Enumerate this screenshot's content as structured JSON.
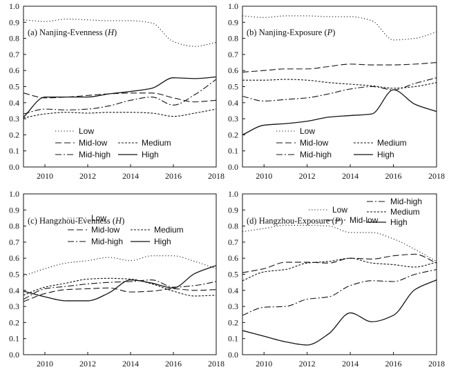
{
  "chart_data": [
    {
      "type": "line",
      "title_prefix": "(a) Nanjing-Evenness (",
      "title_var": "H",
      "title_suffix": ")",
      "xlim": [
        2009,
        2018
      ],
      "ylim": [
        0,
        1
      ],
      "xticks": [
        2010,
        2012,
        2014,
        2016,
        2018
      ],
      "yticks": [
        0.0,
        0.1,
        0.2,
        0.3,
        0.4,
        0.5,
        0.6,
        0.7,
        0.8,
        0.9,
        1.0
      ],
      "x": [
        2009,
        2010,
        2011,
        2012,
        2013,
        2014,
        2015,
        2016,
        2017,
        2018
      ],
      "series": [
        {
          "name": "Low",
          "dash": "1.2,3",
          "values": [
            0.915,
            0.905,
            0.92,
            0.915,
            0.91,
            0.91,
            0.895,
            0.78,
            0.75,
            0.775
          ]
        },
        {
          "name": "Mid-low",
          "dash": "9,4",
          "values": [
            0.46,
            0.43,
            0.435,
            0.445,
            0.455,
            0.46,
            0.46,
            0.43,
            0.405,
            0.415
          ]
        },
        {
          "name": "Medium",
          "dash": "3,2",
          "values": [
            0.305,
            0.33,
            0.34,
            0.335,
            0.34,
            0.34,
            0.335,
            0.315,
            0.335,
            0.36
          ]
        },
        {
          "name": "Mid-high",
          "dash": "9,3,2,3",
          "values": [
            0.33,
            0.36,
            0.355,
            0.36,
            0.38,
            0.415,
            0.435,
            0.385,
            0.45,
            0.545
          ]
        },
        {
          "name": "High",
          "dash": "",
          "values": [
            0.31,
            0.435,
            0.435,
            0.435,
            0.455,
            0.47,
            0.49,
            0.555,
            0.55,
            0.56
          ]
        }
      ],
      "legend_rows": [
        [
          {
            "s": 0
          }
        ],
        [
          {
            "s": 1
          },
          {
            "s": 2
          }
        ],
        [
          {
            "s": 3
          },
          {
            "s": 4
          }
        ]
      ]
    },
    {
      "type": "line",
      "title_prefix": "(b) Nanjing-Exposure (",
      "title_var": "P",
      "title_suffix": ")",
      "xlim": [
        2009,
        2018
      ],
      "ylim": [
        0,
        1
      ],
      "xticks": [
        2010,
        2012,
        2014,
        2016,
        2018
      ],
      "yticks": [
        0.0,
        0.1,
        0.2,
        0.3,
        0.4,
        0.5,
        0.6,
        0.7,
        0.8,
        0.9,
        1.0
      ],
      "x": [
        2009,
        2010,
        2011,
        2012,
        2013,
        2014,
        2015,
        2016,
        2017,
        2018
      ],
      "series": [
        {
          "name": "Low",
          "dash": "1.2,3",
          "values": [
            0.94,
            0.93,
            0.94,
            0.94,
            0.935,
            0.935,
            0.91,
            0.79,
            0.8,
            0.84
          ]
        },
        {
          "name": "Mid-low",
          "dash": "9,4",
          "values": [
            0.59,
            0.6,
            0.61,
            0.61,
            0.625,
            0.64,
            0.635,
            0.635,
            0.64,
            0.65
          ]
        },
        {
          "name": "Medium",
          "dash": "3,2",
          "values": [
            0.54,
            0.54,
            0.545,
            0.54,
            0.525,
            0.515,
            0.505,
            0.49,
            0.5,
            0.525
          ]
        },
        {
          "name": "Mid-high",
          "dash": "9,3,2,3",
          "values": [
            0.44,
            0.41,
            0.42,
            0.43,
            0.455,
            0.485,
            0.5,
            0.48,
            0.52,
            0.555
          ]
        },
        {
          "name": "High",
          "dash": "",
          "values": [
            0.2,
            0.26,
            0.27,
            0.285,
            0.31,
            0.32,
            0.33,
            0.48,
            0.39,
            0.345
          ]
        }
      ],
      "legend_rows": [
        [
          {
            "s": 0
          }
        ],
        [
          {
            "s": 1
          },
          {
            "s": 2
          }
        ],
        [
          {
            "s": 3
          },
          {
            "s": 4
          }
        ]
      ]
    },
    {
      "type": "line",
      "title_prefix": "(c) Hangzhou-Evenness (",
      "title_var": "H",
      "title_suffix": ")",
      "xlim": [
        2009,
        2018
      ],
      "ylim": [
        0,
        1
      ],
      "xticks": [
        2010,
        2012,
        2014,
        2016,
        2018
      ],
      "yticks": [
        0.0,
        0.1,
        0.2,
        0.3,
        0.4,
        0.5,
        0.6,
        0.7,
        0.8,
        0.9,
        1.0
      ],
      "x": [
        2009,
        2010,
        2011,
        2012,
        2013,
        2014,
        2015,
        2016,
        2017,
        2018
      ],
      "series": [
        {
          "name": "Low",
          "dash": "1.2,3",
          "values": [
            0.49,
            0.535,
            0.57,
            0.585,
            0.605,
            0.585,
            0.615,
            0.615,
            0.58,
            0.535
          ]
        },
        {
          "name": "Mid-low",
          "dash": "9,4",
          "values": [
            0.33,
            0.38,
            0.405,
            0.41,
            0.415,
            0.39,
            0.395,
            0.41,
            0.4,
            0.405
          ]
        },
        {
          "name": "Medium",
          "dash": "3,2",
          "values": [
            0.37,
            0.42,
            0.445,
            0.47,
            0.475,
            0.47,
            0.44,
            0.395,
            0.365,
            0.37
          ]
        },
        {
          "name": "Mid-high",
          "dash": "9,3,2,3",
          "values": [
            0.345,
            0.41,
            0.425,
            0.44,
            0.45,
            0.455,
            0.465,
            0.42,
            0.43,
            0.455
          ]
        },
        {
          "name": "High",
          "dash": "",
          "values": [
            0.395,
            0.36,
            0.335,
            0.335,
            0.385,
            0.465,
            0.445,
            0.415,
            0.505,
            0.555
          ]
        }
      ],
      "legend_rows": [
        [
          {
            "s": 0
          }
        ],
        [
          {
            "s": 1
          },
          {
            "s": 2
          }
        ],
        [
          {
            "s": 3
          },
          {
            "s": 4
          }
        ]
      ]
    },
    {
      "type": "line",
      "title_prefix": "(d) Hangzhou-Exposure (",
      "title_var": "P",
      "title_suffix": ")",
      "xlim": [
        2009,
        2018
      ],
      "ylim": [
        0,
        1
      ],
      "xticks": [
        2010,
        2012,
        2014,
        2016,
        2018
      ],
      "yticks": [
        0.0,
        0.1,
        0.2,
        0.3,
        0.4,
        0.5,
        0.6,
        0.7,
        0.8,
        0.9,
        1.0
      ],
      "x": [
        2009,
        2010,
        2011,
        2012,
        2013,
        2014,
        2015,
        2016,
        2017,
        2018
      ],
      "series": [
        {
          "name": "Low",
          "dash": "1.2,3",
          "values": [
            0.765,
            0.785,
            0.805,
            0.805,
            0.8,
            0.76,
            0.76,
            0.72,
            0.655,
            0.58
          ]
        },
        {
          "name": "Mid-low",
          "dash": "9,4",
          "values": [
            0.51,
            0.535,
            0.575,
            0.575,
            0.57,
            0.6,
            0.595,
            0.615,
            0.625,
            0.57
          ]
        },
        {
          "name": "Medium",
          "dash": "3,2",
          "values": [
            0.46,
            0.515,
            0.53,
            0.57,
            0.58,
            0.6,
            0.57,
            0.56,
            0.545,
            0.575
          ]
        },
        {
          "name": "Mid-high",
          "dash": "9,3,2,3",
          "values": [
            0.245,
            0.295,
            0.3,
            0.345,
            0.36,
            0.43,
            0.46,
            0.455,
            0.5,
            0.53
          ]
        },
        {
          "name": "High",
          "dash": "",
          "values": [
            0.15,
            0.115,
            0.08,
            0.06,
            0.13,
            0.26,
            0.205,
            0.245,
            0.405,
            0.465
          ]
        }
      ],
      "legend_rows": [
        [
          {
            "s": 0
          },
          {
            "s": 3
          }
        ],
        [
          {
            "s": 1
          },
          {
            "s": 2
          }
        ],
        [
          {
            "s": 4
          }
        ]
      ]
    }
  ]
}
